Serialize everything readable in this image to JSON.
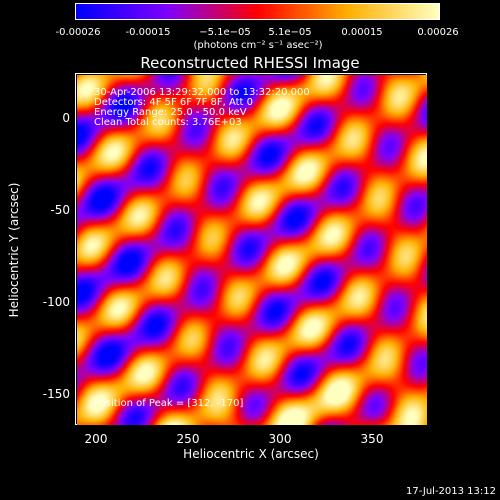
{
  "colorbar": {
    "ticks": [
      "-0.00026",
      "-0.00015",
      "−5.1e−05",
      "5.1e−05",
      "0.00015",
      "0.00026"
    ],
    "tick_values": [
      -0.00026,
      -0.00015,
      -5.1e-05,
      5.1e-05,
      0.00015,
      0.00026
    ],
    "label": "(photons cm⁻² s⁻¹ asec⁻²)",
    "colors": [
      "#0000ff",
      "#7f00ff",
      "#ff0000",
      "#ffb000",
      "#ffffc0"
    ]
  },
  "info": {
    "time_range": "30-Apr-2006 13:29:32.000 to 13:32:20.000",
    "detectors": "Detectors: 4F 5F 6F 7F 8F, Att 0",
    "energy": "Energy Range: 25.0 - 50.0 keV",
    "clean": "Clean    Total counts: 3.76E+03",
    "peak": "Position of Peak = [312, -170]"
  },
  "footer": {
    "date": "17-Jul-2013 13:12"
  },
  "chart_data": {
    "type": "heatmap",
    "title": "Reconstructed RHESSI Image",
    "xlabel": "Heliocentric X (arcsec)",
    "ylabel": "Heliocentric Y (arcsec)",
    "xlim": [
      189,
      380
    ],
    "ylim": [
      -172,
      19
    ],
    "xticks": [
      200,
      250,
      300,
      350
    ],
    "yticks": [
      0,
      -50,
      -100,
      -150
    ],
    "value_range": [
      -0.00026,
      0.00026
    ],
    "peak": [
      312,
      -170
    ]
  }
}
